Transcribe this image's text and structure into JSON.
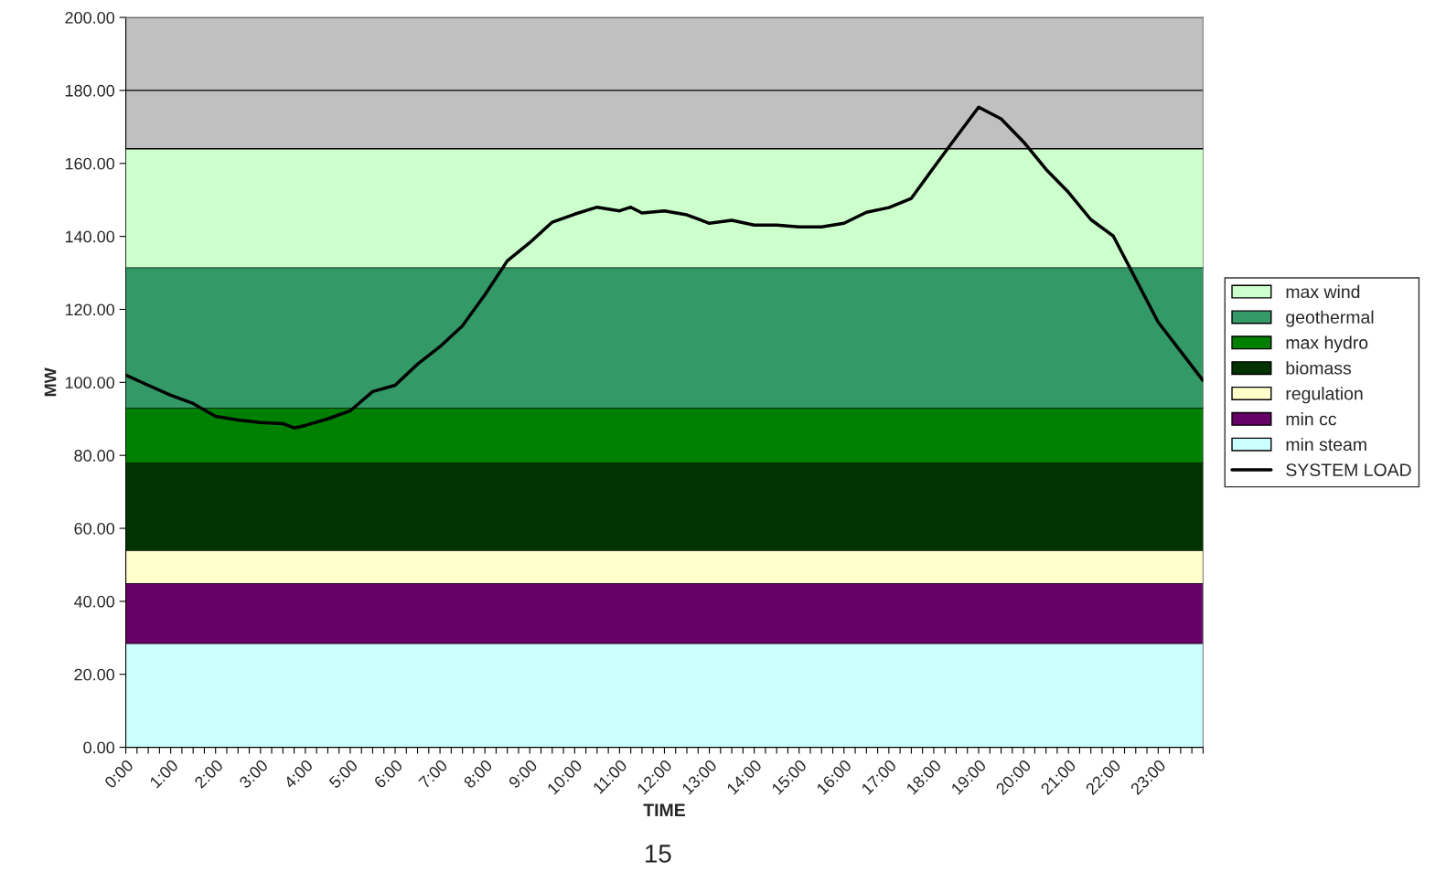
{
  "chart_data": {
    "type": "area",
    "stacked": true,
    "xlabel": "TIME",
    "ylabel": "MW",
    "annotations": [
      "15"
    ],
    "x": [
      0,
      24
    ],
    "xlim": [
      0,
      24
    ],
    "xticks": [
      {
        "value": 0,
        "label": "0:00"
      },
      {
        "value": 0.25,
        "label": null
      },
      {
        "value": 0.5,
        "label": null
      },
      {
        "value": 0.75,
        "label": null
      },
      {
        "value": 1,
        "label": "1:00"
      },
      {
        "value": 1.25,
        "label": null
      },
      {
        "value": 1.5,
        "label": null
      },
      {
        "value": 1.75,
        "label": null
      },
      {
        "value": 2,
        "label": "2:00"
      },
      {
        "value": 2.25,
        "label": null
      },
      {
        "value": 2.5,
        "label": null
      },
      {
        "value": 2.75,
        "label": null
      },
      {
        "value": 3,
        "label": "3:00"
      },
      {
        "value": 3.25,
        "label": null
      },
      {
        "value": 3.5,
        "label": null
      },
      {
        "value": 3.75,
        "label": null
      },
      {
        "value": 4,
        "label": "4:00"
      },
      {
        "value": 4.25,
        "label": null
      },
      {
        "value": 4.5,
        "label": null
      },
      {
        "value": 4.75,
        "label": null
      },
      {
        "value": 5,
        "label": "5:00"
      },
      {
        "value": 5.25,
        "label": null
      },
      {
        "value": 5.5,
        "label": null
      },
      {
        "value": 5.75,
        "label": null
      },
      {
        "value": 6,
        "label": "6:00"
      },
      {
        "value": 6.25,
        "label": null
      },
      {
        "value": 6.5,
        "label": null
      },
      {
        "value": 6.75,
        "label": null
      },
      {
        "value": 7,
        "label": "7:00"
      },
      {
        "value": 7.25,
        "label": null
      },
      {
        "value": 7.5,
        "label": null
      },
      {
        "value": 7.75,
        "label": null
      },
      {
        "value": 8,
        "label": "8:00"
      },
      {
        "value": 8.25,
        "label": null
      },
      {
        "value": 8.5,
        "label": null
      },
      {
        "value": 8.75,
        "label": null
      },
      {
        "value": 9,
        "label": "9:00"
      },
      {
        "value": 9.25,
        "label": null
      },
      {
        "value": 9.5,
        "label": null
      },
      {
        "value": 9.75,
        "label": null
      },
      {
        "value": 10,
        "label": "10:00"
      },
      {
        "value": 10.25,
        "label": null
      },
      {
        "value": 10.5,
        "label": null
      },
      {
        "value": 10.75,
        "label": null
      },
      {
        "value": 11,
        "label": "11:00"
      },
      {
        "value": 11.25,
        "label": null
      },
      {
        "value": 11.5,
        "label": null
      },
      {
        "value": 11.75,
        "label": null
      },
      {
        "value": 12,
        "label": "12:00"
      },
      {
        "value": 12.25,
        "label": null
      },
      {
        "value": 12.5,
        "label": null
      },
      {
        "value": 12.75,
        "label": null
      },
      {
        "value": 13,
        "label": "13:00"
      },
      {
        "value": 13.25,
        "label": null
      },
      {
        "value": 13.5,
        "label": null
      },
      {
        "value": 13.75,
        "label": null
      },
      {
        "value": 14,
        "label": "14:00"
      },
      {
        "value": 14.25,
        "label": null
      },
      {
        "value": 14.5,
        "label": null
      },
      {
        "value": 14.75,
        "label": null
      },
      {
        "value": 15,
        "label": "15:00"
      },
      {
        "value": 15.25,
        "label": null
      },
      {
        "value": 15.5,
        "label": null
      },
      {
        "value": 15.75,
        "label": null
      },
      {
        "value": 16,
        "label": "16:00"
      },
      {
        "value": 16.25,
        "label": null
      },
      {
        "value": 16.5,
        "label": null
      },
      {
        "value": 16.75,
        "label": null
      },
      {
        "value": 17,
        "label": "17:00"
      },
      {
        "value": 17.25,
        "label": null
      },
      {
        "value": 17.5,
        "label": null
      },
      {
        "value": 17.75,
        "label": null
      },
      {
        "value": 18,
        "label": "18:00"
      },
      {
        "value": 18.25,
        "label": null
      },
      {
        "value": 18.5,
        "label": null
      },
      {
        "value": 18.75,
        "label": null
      },
      {
        "value": 19,
        "label": "19:00"
      },
      {
        "value": 19.25,
        "label": null
      },
      {
        "value": 19.5,
        "label": null
      },
      {
        "value": 19.75,
        "label": null
      },
      {
        "value": 20,
        "label": "20:00"
      },
      {
        "value": 20.25,
        "label": null
      },
      {
        "value": 20.5,
        "label": null
      },
      {
        "value": 20.75,
        "label": null
      },
      {
        "value": 21,
        "label": "21:00"
      },
      {
        "value": 21.25,
        "label": null
      },
      {
        "value": 21.5,
        "label": null
      },
      {
        "value": 21.75,
        "label": null
      },
      {
        "value": 22,
        "label": "22:00"
      },
      {
        "value": 22.25,
        "label": null
      },
      {
        "value": 22.5,
        "label": null
      },
      {
        "value": 22.75,
        "label": null
      },
      {
        "value": 23,
        "label": "23:00"
      },
      {
        "value": 23.25,
        "label": null
      },
      {
        "value": 23.5,
        "label": null
      },
      {
        "value": 23.75,
        "label": null
      },
      {
        "value": 24,
        "label": null
      }
    ],
    "ylim": [
      0,
      200
    ],
    "yticks": [
      {
        "value": 0,
        "label": "0.00"
      },
      {
        "value": 20,
        "label": "20.00"
      },
      {
        "value": 40,
        "label": "40.00"
      },
      {
        "value": 60,
        "label": "60.00"
      },
      {
        "value": 80,
        "label": "80.00"
      },
      {
        "value": 100,
        "label": "100.00"
      },
      {
        "value": 120,
        "label": "120.00"
      },
      {
        "value": 140,
        "label": "140.00"
      },
      {
        "value": 160,
        "label": "160.00"
      },
      {
        "value": 180,
        "label": "180.00"
      },
      {
        "value": 200,
        "label": "200.00"
      }
    ],
    "grid": "y",
    "legend": "right",
    "marker": "none",
    "line_style": "solid",
    "series": [
      {
        "name": "min steam",
        "color": "#ccffff",
        "values": [
          28.5,
          28.5
        ]
      },
      {
        "name": "min cc",
        "color": "#660066",
        "values": [
          16.5,
          16.5
        ]
      },
      {
        "name": "regulation",
        "color": "#ffffcc",
        "values": [
          9,
          9
        ]
      },
      {
        "name": "biomass",
        "color": "#003300",
        "values": [
          24,
          24
        ]
      },
      {
        "name": "max hydro",
        "color": "#008000",
        "values": [
          15,
          15
        ]
      },
      {
        "name": "geothermal",
        "color": "#339966",
        "values": [
          38.5,
          38.5
        ]
      },
      {
        "name": "max wind",
        "color": "#ccffcc",
        "values": [
          32.5,
          32.5
        ]
      },
      {
        "name": "SYSTEM LOAD",
        "type": "line",
        "color": "#000000",
        "x": [
          0,
          0.5,
          1,
          1.5,
          2,
          2.5,
          3,
          3.5,
          3.75,
          4,
          4.5,
          5,
          5.5,
          6,
          6.5,
          7,
          7.5,
          8,
          8.5,
          9,
          9.5,
          10,
          10.5,
          11,
          11.25,
          11.5,
          12,
          12.5,
          13,
          13.5,
          14,
          14.5,
          15,
          15.5,
          16,
          16.5,
          17,
          17.5,
          18,
          18.5,
          19,
          19.5,
          20,
          20.5,
          21,
          21.5,
          22,
          22.5,
          23,
          23.5,
          24
        ],
        "values": [
          102,
          99.2,
          96.5,
          94.2,
          90.7,
          89.7,
          89,
          88.7,
          87.5,
          88.2,
          90,
          92.2,
          97.5,
          99.2,
          105,
          109.8,
          115.5,
          124,
          133.3,
          138.3,
          143.9,
          146.1,
          148,
          147,
          148,
          146.4,
          147,
          145.9,
          143.6,
          144.4,
          143.1,
          143.1,
          142.6,
          142.6,
          143.6,
          146.6,
          147.9,
          150.4,
          158.9,
          167.2,
          175.4,
          172.2,
          165.9,
          158.4,
          152.1,
          144.6,
          140.1,
          128.3,
          116.5,
          108.5,
          100.5
        ]
      }
    ]
  }
}
